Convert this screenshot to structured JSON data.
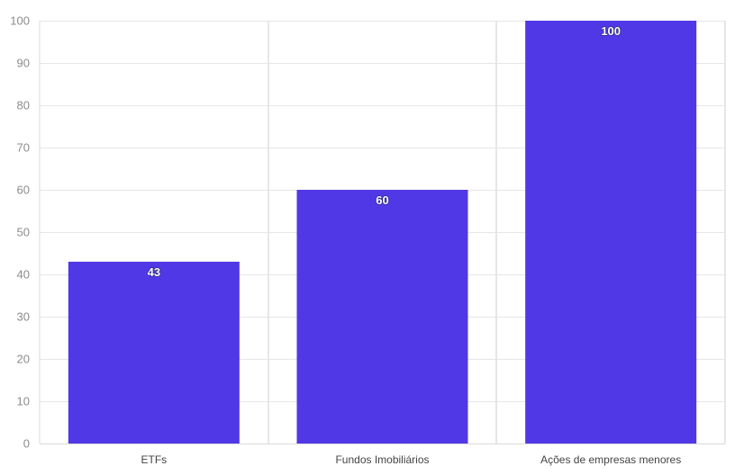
{
  "chart_data": {
    "type": "bar",
    "categories": [
      "ETFs",
      "Fundos Imobiliários",
      "Ações de empresas menores"
    ],
    "values": [
      43,
      60,
      100
    ],
    "data_labels": [
      "43",
      "60",
      "100"
    ],
    "ylim": [
      0,
      100
    ],
    "yticks": [
      0,
      10,
      20,
      30,
      40,
      50,
      60,
      70,
      80,
      90,
      100
    ],
    "grid": true,
    "bar_color": "#5038e6"
  }
}
